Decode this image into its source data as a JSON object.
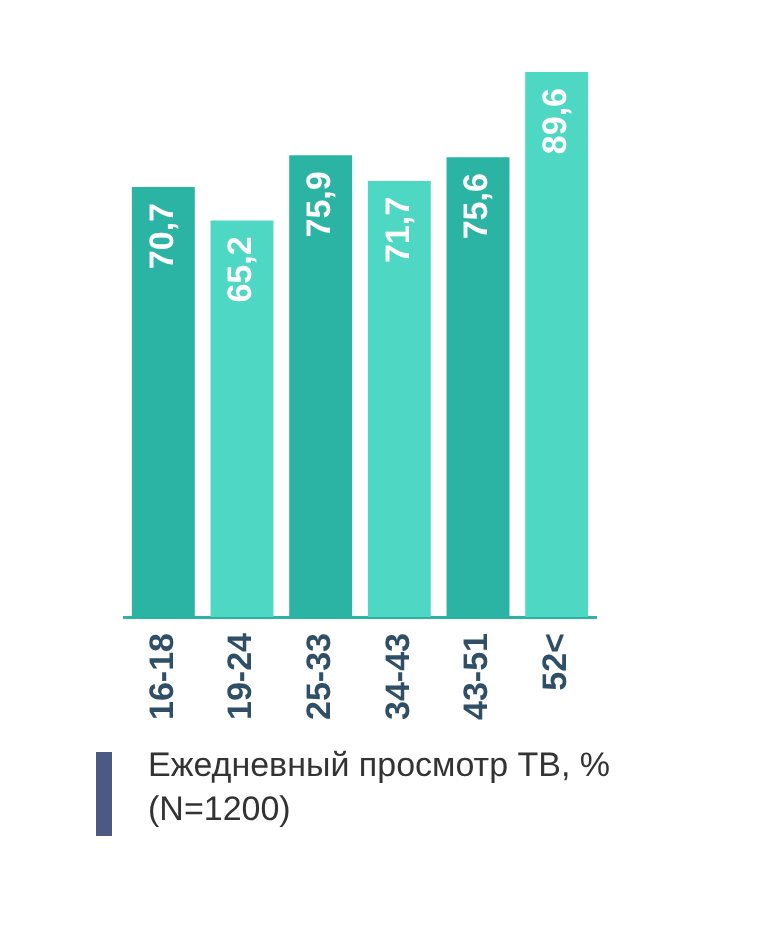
{
  "chart_data": {
    "type": "bar",
    "categories": [
      "16-18",
      "19-24",
      "25-33",
      "34-43",
      "43-51",
      "52<"
    ],
    "values": [
      70.7,
      65.2,
      75.9,
      71.7,
      75.6,
      89.6
    ],
    "value_labels": [
      "70,7",
      "65,2",
      "75,9",
      "71,7",
      "75,6",
      "89,6"
    ],
    "colors": [
      "#2bb4a4",
      "#4ed8c4",
      "#2bb4a4",
      "#4ed8c4",
      "#2bb4a4",
      "#4ed8c4"
    ],
    "legend": false,
    "grid": false,
    "annotations": [
      "Ежедневный просмотр ТВ, % (N=1200)"
    ]
  }
}
